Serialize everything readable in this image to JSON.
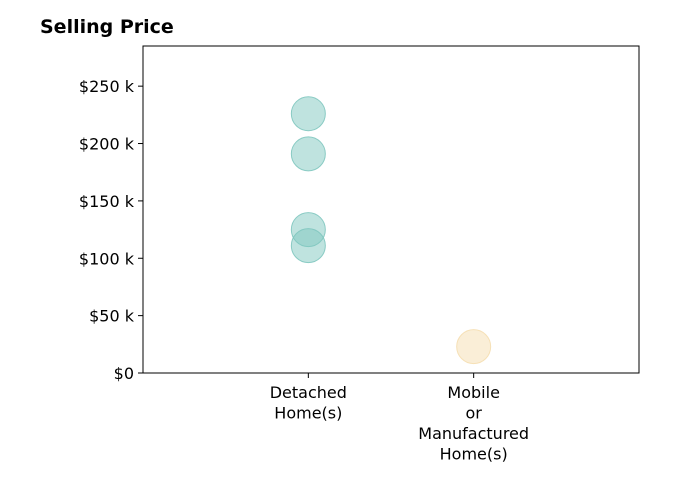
{
  "chart_data": {
    "type": "scatter",
    "title": "Selling Price",
    "xlabel": "",
    "ylabel": "",
    "categories": [
      [
        "Detached",
        "Home(s)"
      ],
      [
        "Mobile",
        "or",
        "Manufactured",
        "Home(s)"
      ]
    ],
    "x_range": [
      -1,
      2
    ],
    "ylim": [
      0,
      285000
    ],
    "y_ticks": [
      {
        "value": 0,
        "label": "$0"
      },
      {
        "value": 50000,
        "label": "$50 k"
      },
      {
        "value": 100000,
        "label": "$100 k"
      },
      {
        "value": 150000,
        "label": "$150 k"
      },
      {
        "value": 200000,
        "label": "$200 k"
      },
      {
        "value": 250000,
        "label": "$250 k"
      }
    ],
    "grid": false,
    "legend": "none",
    "series": [
      {
        "category_index": 0,
        "color": "#7fc7bf",
        "values": [
          226000,
          191000,
          125000,
          111000
        ]
      },
      {
        "category_index": 1,
        "color": "#f5deb0",
        "values": [
          23000
        ]
      }
    ]
  }
}
